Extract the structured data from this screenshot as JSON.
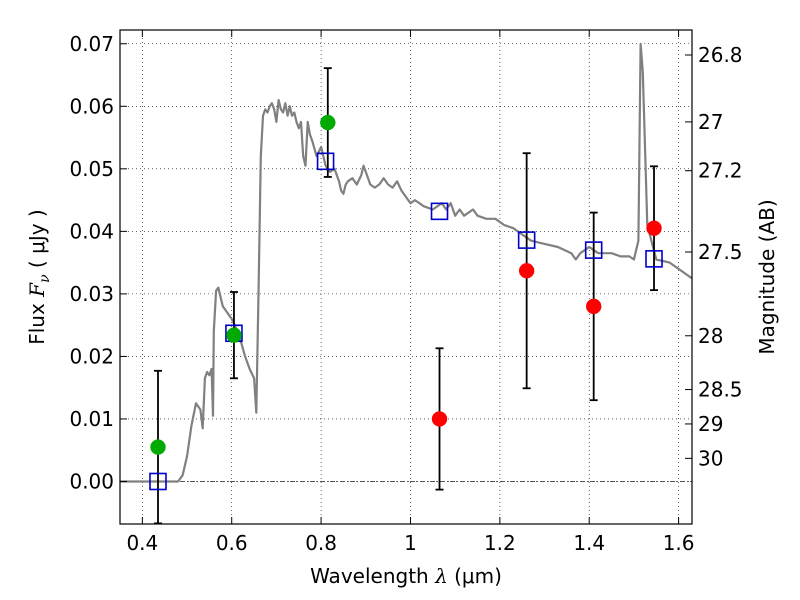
{
  "chart_data": {
    "type": "scatter",
    "title": "",
    "xlabel": {
      "prefix": "Wavelength",
      "symbol": "λ",
      "unit": "(μm)"
    },
    "ylabel": {
      "prefix": "Flux",
      "symbol": "F",
      "subscript": "ν",
      "unit": "μJy"
    },
    "y2label": "Magnitude (AB)",
    "xlim": [
      0.35,
      1.63
    ],
    "ylim": [
      -0.0068,
      0.0722
    ],
    "grid": true,
    "x_ticks": [
      0.4,
      0.6,
      0.8,
      1,
      1.2,
      1.4,
      1.6
    ],
    "x_tick_labels": [
      "0.4",
      "0.6",
      "0.8",
      "1",
      "1.2",
      "1.4",
      "1.6"
    ],
    "y_ticks": [
      0,
      0.01,
      0.02,
      0.03,
      0.04,
      0.05,
      0.06,
      0.07
    ],
    "y_tick_labels": [
      "0.00",
      "0.01",
      "0.02",
      "0.03",
      "0.04",
      "0.05",
      "0.06",
      "0.07"
    ],
    "y2_ticks": [
      {
        "flux": 0.0682,
        "label": "26.8"
      },
      {
        "flux": 0.0575,
        "label": "27"
      },
      {
        "flux": 0.0497,
        "label": "27.2"
      },
      {
        "flux": 0.0367,
        "label": "27.5"
      },
      {
        "flux": 0.0233,
        "label": "28"
      },
      {
        "flux": 0.0147,
        "label": "28.5"
      },
      {
        "flux": 0.0092,
        "label": "29"
      },
      {
        "flux": 0.0037,
        "label": "30"
      }
    ],
    "colors": {
      "model": "#808080",
      "model_photometry": "#0000cc",
      "green_points": "#00aa00",
      "red_points": "#ff0000",
      "errorbar": "#000000"
    },
    "series": [
      {
        "type": "line",
        "points": [
          [
            0.35,
            0
          ],
          [
            0.48,
            0
          ],
          [
            0.49,
            0.001
          ],
          [
            0.5,
            0.004
          ],
          [
            0.51,
            0.009
          ],
          [
            0.52,
            0.0125
          ],
          [
            0.53,
            0.0115
          ],
          [
            0.535,
            0.0085
          ],
          [
            0.54,
            0.0165
          ],
          [
            0.545,
            0.0175
          ],
          [
            0.55,
            0.017
          ],
          [
            0.555,
            0.018
          ],
          [
            0.558,
            0.0105
          ],
          [
            0.56,
            0.024
          ],
          [
            0.565,
            0.0305
          ],
          [
            0.57,
            0.031
          ],
          [
            0.58,
            0.028
          ],
          [
            0.59,
            0.027
          ],
          [
            0.6,
            0.026
          ],
          [
            0.61,
            0.0245
          ],
          [
            0.62,
            0.0225
          ],
          [
            0.63,
            0.02
          ],
          [
            0.64,
            0.018
          ],
          [
            0.65,
            0.0165
          ],
          [
            0.655,
            0.011
          ],
          [
            0.66,
            0.03
          ],
          [
            0.665,
            0.052
          ],
          [
            0.67,
            0.0585
          ],
          [
            0.675,
            0.0595
          ],
          [
            0.68,
            0.059
          ],
          [
            0.685,
            0.06
          ],
          [
            0.69,
            0.0605
          ],
          [
            0.695,
            0.0595
          ],
          [
            0.7,
            0.0575
          ],
          [
            0.705,
            0.061
          ],
          [
            0.71,
            0.0595
          ],
          [
            0.715,
            0.059
          ],
          [
            0.72,
            0.0605
          ],
          [
            0.725,
            0.0585
          ],
          [
            0.73,
            0.06
          ],
          [
            0.735,
            0.0585
          ],
          [
            0.74,
            0.059
          ],
          [
            0.745,
            0.0575
          ],
          [
            0.75,
            0.0565
          ],
          [
            0.755,
            0.0575
          ],
          [
            0.76,
            0.052
          ],
          [
            0.765,
            0.0505
          ],
          [
            0.77,
            0.0575
          ],
          [
            0.775,
            0.0555
          ],
          [
            0.78,
            0.0545
          ],
          [
            0.79,
            0.052
          ],
          [
            0.8,
            0.0535
          ],
          [
            0.81,
            0.0505
          ],
          [
            0.82,
            0.0495
          ],
          [
            0.83,
            0.05
          ],
          [
            0.84,
            0.048
          ],
          [
            0.845,
            0.0465
          ],
          [
            0.85,
            0.046
          ],
          [
            0.855,
            0.0475
          ],
          [
            0.86,
            0.048
          ],
          [
            0.87,
            0.0485
          ],
          [
            0.88,
            0.0475
          ],
          [
            0.89,
            0.049
          ],
          [
            0.895,
            0.0505
          ],
          [
            0.9,
            0.0495
          ],
          [
            0.91,
            0.0475
          ],
          [
            0.92,
            0.047
          ],
          [
            0.93,
            0.0475
          ],
          [
            0.94,
            0.0485
          ],
          [
            0.95,
            0.0475
          ],
          [
            0.96,
            0.047
          ],
          [
            0.97,
            0.048
          ],
          [
            0.98,
            0.0465
          ],
          [
            0.99,
            0.0455
          ],
          [
            1.0,
            0.0445
          ],
          [
            1.01,
            0.045
          ],
          [
            1.03,
            0.044
          ],
          [
            1.05,
            0.0435
          ],
          [
            1.07,
            0.0445
          ],
          [
            1.08,
            0.0435
          ],
          [
            1.09,
            0.0445
          ],
          [
            1.1,
            0.0425
          ],
          [
            1.11,
            0.0435
          ],
          [
            1.12,
            0.0425
          ],
          [
            1.14,
            0.0435
          ],
          [
            1.15,
            0.0425
          ],
          [
            1.17,
            0.042
          ],
          [
            1.19,
            0.042
          ],
          [
            1.21,
            0.041
          ],
          [
            1.23,
            0.0405
          ],
          [
            1.25,
            0.0395
          ],
          [
            1.27,
            0.0385
          ],
          [
            1.3,
            0.038
          ],
          [
            1.33,
            0.0375
          ],
          [
            1.36,
            0.0365
          ],
          [
            1.37,
            0.0355
          ],
          [
            1.38,
            0.0365
          ],
          [
            1.4,
            0.0375
          ],
          [
            1.42,
            0.0365
          ],
          [
            1.45,
            0.0365
          ],
          [
            1.47,
            0.036
          ],
          [
            1.49,
            0.036
          ],
          [
            1.5,
            0.0355
          ],
          [
            1.51,
            0.0385
          ],
          [
            1.515,
            0.07
          ],
          [
            1.52,
            0.0655
          ],
          [
            1.53,
            0.041
          ],
          [
            1.55,
            0.0355
          ],
          [
            1.58,
            0.035
          ],
          [
            1.63,
            0.0325
          ]
        ]
      },
      {
        "type": "markers",
        "marker": "open-square",
        "points": [
          [
            0.435,
            0
          ],
          [
            0.605,
            0.0237
          ],
          [
            0.81,
            0.0512
          ],
          [
            1.065,
            0.0432
          ],
          [
            1.26,
            0.0386
          ],
          [
            1.41,
            0.037
          ],
          [
            1.545,
            0.0356
          ]
        ]
      },
      {
        "type": "errorbar",
        "marker": "filled-circle",
        "color": "green",
        "points": [
          {
            "x": 0.435,
            "y": 0.0055,
            "yerr": [
              0.0122,
              0.0122
            ]
          },
          {
            "x": 0.605,
            "y": 0.0234,
            "yerr": [
              0.0069,
              0.0069
            ]
          },
          {
            "x": 0.815,
            "y": 0.0574,
            "yerr": [
              0.0087,
              0.0087
            ]
          }
        ]
      },
      {
        "type": "errorbar",
        "marker": "filled-circle",
        "color": "red",
        "points": [
          {
            "x": 1.065,
            "y": 0.01,
            "yerr": [
              0.0113,
              0.0113
            ]
          },
          {
            "x": 1.26,
            "y": 0.0337,
            "yerr": [
              0.0188,
              0.0188
            ]
          },
          {
            "x": 1.41,
            "y": 0.028,
            "yerr": [
              0.015,
              0.015
            ]
          },
          {
            "x": 1.545,
            "y": 0.0405,
            "yerr": [
              0.0099,
              0.0099
            ]
          }
        ]
      }
    ]
  }
}
